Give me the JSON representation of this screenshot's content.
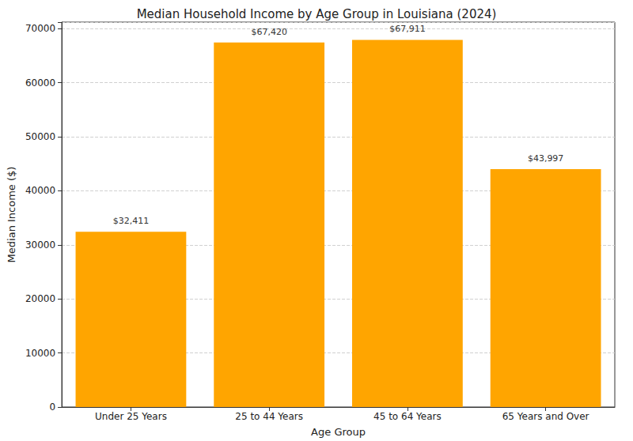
{
  "chart_data": {
    "type": "bar",
    "title": "Median Household Income by Age Group in Louisiana (2024)",
    "x_label": "Age Group",
    "y_label": "Median Income ($)",
    "categories": [
      "Under 25 Years",
      "25 to 44 Years",
      "45 to 64 Years",
      "65 Years and Over"
    ],
    "values": [
      32411,
      67420,
      67911,
      43997
    ],
    "value_labels": [
      "$32,411",
      "$67,420",
      "$67,911",
      "$43,997"
    ],
    "data_labels": true,
    "color": "#ffa500",
    "ylim": [
      0,
      71200
    ],
    "yticks": [
      0,
      10000,
      20000,
      30000,
      40000,
      50000,
      60000,
      70000
    ],
    "grid": true
  }
}
